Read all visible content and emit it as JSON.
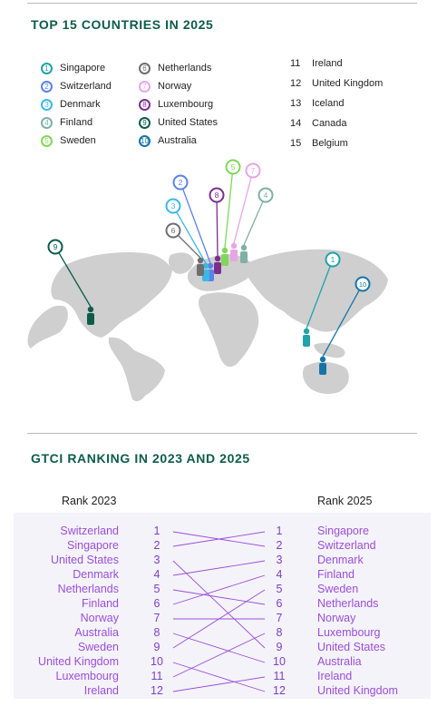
{
  "sections": {
    "top15_title": "TOP 15 COUNTRIES IN 2025",
    "ranking_title": "GTCI RANKING IN 2023 AND 2025"
  },
  "legend": [
    {
      "rank": "1",
      "name": "Singapore",
      "color": "#1fa3a8"
    },
    {
      "rank": "2",
      "name": "Switzerland",
      "color": "#5a82e6"
    },
    {
      "rank": "3",
      "name": "Denmark",
      "color": "#3bb8e8"
    },
    {
      "rank": "4",
      "name": "Finland",
      "color": "#7fb0a3"
    },
    {
      "rank": "5",
      "name": "Sweden",
      "color": "#82d65a"
    },
    {
      "rank": "6",
      "name": "Netherlands",
      "color": "#6e6e6e"
    },
    {
      "rank": "7",
      "name": "Norway",
      "color": "#e6a6e6"
    },
    {
      "rank": "8",
      "name": "Luxembourg",
      "color": "#7a2f8f"
    },
    {
      "rank": "9",
      "name": "United States",
      "color": "#0d5c4a"
    },
    {
      "rank": "10",
      "name": "Australia",
      "color": "#1575a8"
    }
  ],
  "others": [
    {
      "rank": "11",
      "name": "Ireland"
    },
    {
      "rank": "12",
      "name": "United Kingdom"
    },
    {
      "rank": "13",
      "name": "Iceland"
    },
    {
      "rank": "14",
      "name": "Canada"
    },
    {
      "rank": "15",
      "name": "Belgium"
    }
  ],
  "ranking": {
    "left_header": "Rank 2023",
    "right_header": "Rank 2025",
    "left_names": [
      "Switzerland",
      "Singapore",
      "United States",
      "Denmark",
      "Netherlands",
      "Finland",
      "Norway",
      "Australia",
      "Sweden",
      "United Kingdom",
      "Luxembourg",
      "Ireland"
    ],
    "right_names": [
      "Singapore",
      "Switzerland",
      "Denmark",
      "Finland",
      "Sweden",
      "Netherlands",
      "Norway",
      "Luxembourg",
      "United States",
      "Australia",
      "Ireland",
      "United Kingdom"
    ],
    "numbers": [
      "1",
      "2",
      "3",
      "4",
      "5",
      "6",
      "7",
      "8",
      "9",
      "10",
      "11",
      "12"
    ],
    "links_2023_to_2025": [
      [
        1,
        2
      ],
      [
        2,
        1
      ],
      [
        3,
        9
      ],
      [
        4,
        3
      ],
      [
        5,
        6
      ],
      [
        6,
        4
      ],
      [
        7,
        7
      ],
      [
        8,
        10
      ],
      [
        9,
        5
      ],
      [
        10,
        12
      ],
      [
        11,
        8
      ],
      [
        12,
        11
      ]
    ],
    "line_color": "#9b4fd6"
  }
}
